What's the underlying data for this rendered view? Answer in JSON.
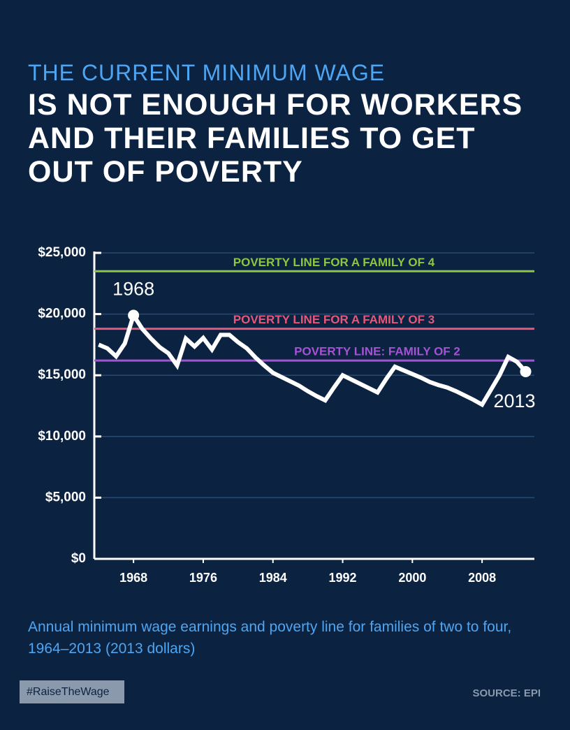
{
  "chart_data": {
    "type": "line",
    "kicker": "THE CURRENT MINIMUM WAGE",
    "title": [
      "IS NOT ENOUGH FOR WORKERS",
      "AND THEIR FAMILIES TO GET",
      "OUT OF POVERTY"
    ],
    "x": [
      1964,
      1965,
      1966,
      1967,
      1968,
      1969,
      1970,
      1971,
      1972,
      1973,
      1974,
      1975,
      1976,
      1977,
      1978,
      1979,
      1980,
      1981,
      1982,
      1983,
      1984,
      1985,
      1986,
      1987,
      1988,
      1989,
      1990,
      1991,
      1992,
      1993,
      1994,
      1995,
      1996,
      1997,
      1998,
      1999,
      2000,
      2001,
      2002,
      2003,
      2004,
      2005,
      2006,
      2007,
      2008,
      2009,
      2010,
      2011,
      2012,
      2013
    ],
    "series": [
      {
        "color": "#ffffff",
        "values": [
          17500,
          17200,
          16550,
          17600,
          19900,
          18800,
          18000,
          17300,
          16800,
          15800,
          18000,
          17350,
          18050,
          17100,
          18300,
          18300,
          17700,
          17200,
          16450,
          15800,
          15200,
          14850,
          14500,
          14150,
          13700,
          13300,
          12950,
          14000,
          15000,
          14650,
          14300,
          13950,
          13600,
          14700,
          15700,
          15400,
          15100,
          14800,
          14450,
          14200,
          14000,
          13700,
          13350,
          13000,
          12600,
          13800,
          15000,
          16500,
          16100,
          15300
        ]
      }
    ],
    "reference_lines": [
      {
        "name": "POVERTY LINE FOR A FAMILY OF 4",
        "value": 23500,
        "color": "#8dc63f"
      },
      {
        "name": "POVERTY LINE FOR A FAMILY OF 3",
        "value": 18800,
        "color": "#e8577a"
      },
      {
        "name": "POVERTY LINE: FAMILY OF 2",
        "value": 16200,
        "color": "#a652d4"
      }
    ],
    "annotations": [
      "1968",
      "2013"
    ],
    "xlim": [
      1963.5,
      2014
    ],
    "xticks": [
      1968,
      1976,
      1984,
      1992,
      2000,
      2008
    ],
    "ylim": [
      0,
      25000
    ],
    "yticks": [
      {
        "value": 0,
        "label": "$0"
      },
      {
        "value": 5000,
        "label": "$5,000"
      },
      {
        "value": 10000,
        "label": "$10,000"
      },
      {
        "value": 15000,
        "label": "$15,000"
      },
      {
        "value": 20000,
        "label": "$20,000"
      },
      {
        "value": 25000,
        "label": "$25,000"
      }
    ],
    "grid": true,
    "caption": "Annual minimum wage earnings and poverty line for families of two to four, 1964–2013 (2013 dollars)",
    "tag": "#RaiseTheWage",
    "source": "SOURCE: EPI"
  }
}
